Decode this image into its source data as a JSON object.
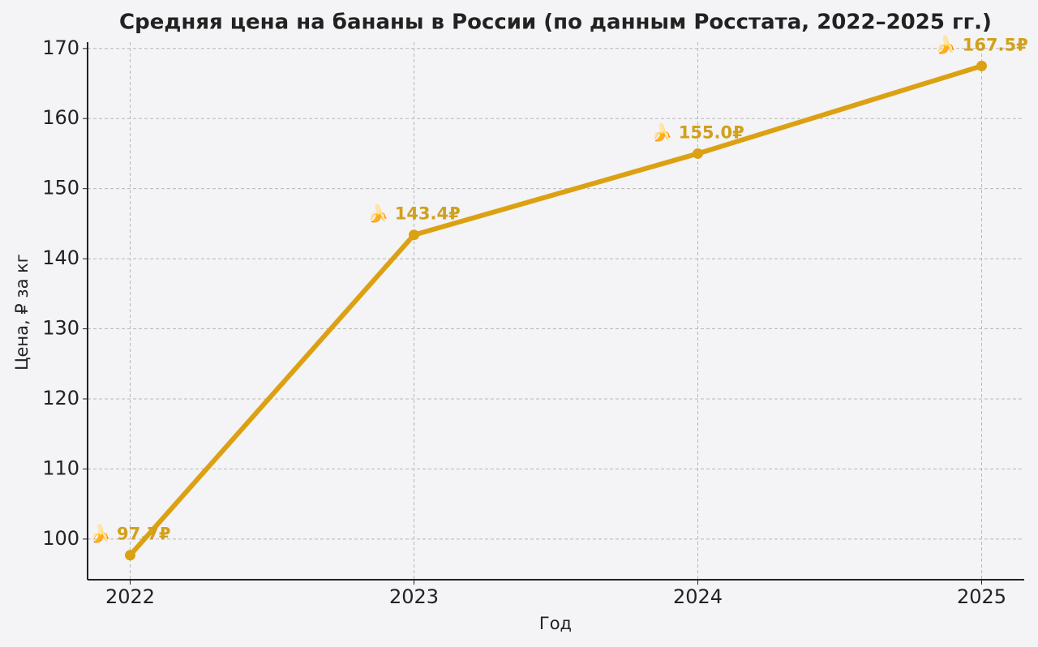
{
  "chart_data": {
    "type": "line",
    "title": "Средняя цена на бананы в России (по данным Росстата, 2022–2025 гг.)",
    "xlabel": "Год",
    "ylabel": "Цена, ₽ за кг",
    "x": [
      2022,
      2023,
      2024,
      2025
    ],
    "series": [
      {
        "name": "Цена",
        "color": "#dba112",
        "values": [
          97.7,
          143.4,
          155.0,
          167.5
        ],
        "value_labels": [
          "🍌 97.7₽",
          "🍌 143.4₽",
          "🍌 155.0₽",
          "🍌 167.5₽"
        ]
      }
    ],
    "label_color": "#d1a01c",
    "xlim": [
      2021.85,
      2025.15
    ],
    "xticks": [
      2022,
      2023,
      2024,
      2025
    ],
    "ylim": [
      94.2,
      170.9
    ],
    "yticks": [
      100,
      110,
      120,
      130,
      140,
      150,
      160,
      170
    ],
    "grid": true
  }
}
